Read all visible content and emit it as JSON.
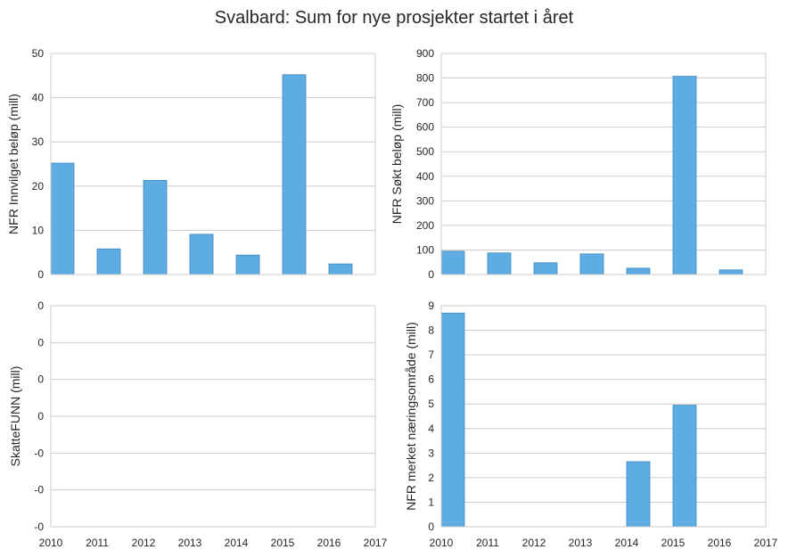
{
  "title": "Svalbard: Sum for nye prosjekter startet i året",
  "colors": {
    "bar": "#5DADE2",
    "bar_edge": "#3f89bf",
    "grid": "#cccccc",
    "frame": "#cccccc"
  },
  "chart_data": [
    {
      "type": "bar",
      "panel": "top-left",
      "ylabel": "NFR Innvilget beløp (mill)",
      "categories": [
        2010,
        2011,
        2012,
        2013,
        2014,
        2015,
        2016
      ],
      "values": [
        25.2,
        5.8,
        21.3,
        9.1,
        4.4,
        45.2,
        2.4
      ],
      "xlim": [
        2010,
        2017
      ],
      "ylim": [
        0,
        50
      ],
      "yticks": [
        "0",
        "10",
        "20",
        "30",
        "40",
        "50"
      ],
      "xticks": [],
      "grid": true
    },
    {
      "type": "bar",
      "panel": "top-right",
      "ylabel": "NFR Søkt beløp (mill)",
      "categories": [
        2010,
        2011,
        2012,
        2013,
        2014,
        2015,
        2016
      ],
      "values": [
        95,
        88,
        48,
        84,
        26,
        807,
        19
      ],
      "xlim": [
        2010,
        2017
      ],
      "ylim": [
        0,
        900
      ],
      "yticks": [
        "0",
        "100",
        "200",
        "300",
        "400",
        "500",
        "600",
        "700",
        "800",
        "900"
      ],
      "xticks": [],
      "grid": true
    },
    {
      "type": "bar",
      "panel": "bottom-left",
      "ylabel": "SkatteFUNN (mill)",
      "categories": [],
      "values": [],
      "xlim": [
        2010,
        2017
      ],
      "ylim": [
        -0.06,
        0.06
      ],
      "yticks": [
        "-0",
        "-0",
        "-0",
        "0",
        "0",
        "0",
        "0"
      ],
      "xticks": [
        "2010",
        "2011",
        "2012",
        "2013",
        "2014",
        "2015",
        "2016",
        "2017"
      ],
      "grid": true
    },
    {
      "type": "bar",
      "panel": "bottom-right",
      "ylabel": "NFR merket næringsområde (mill)",
      "categories": [
        2010,
        2014,
        2015
      ],
      "values": [
        8.7,
        2.65,
        4.95
      ],
      "xlim": [
        2010,
        2017
      ],
      "ylim": [
        0,
        9
      ],
      "yticks": [
        "0",
        "1",
        "2",
        "3",
        "4",
        "5",
        "6",
        "7",
        "8",
        "9"
      ],
      "xticks": [
        "2010",
        "2011",
        "2012",
        "2013",
        "2014",
        "2015",
        "2016",
        "2017"
      ],
      "grid": true
    }
  ]
}
